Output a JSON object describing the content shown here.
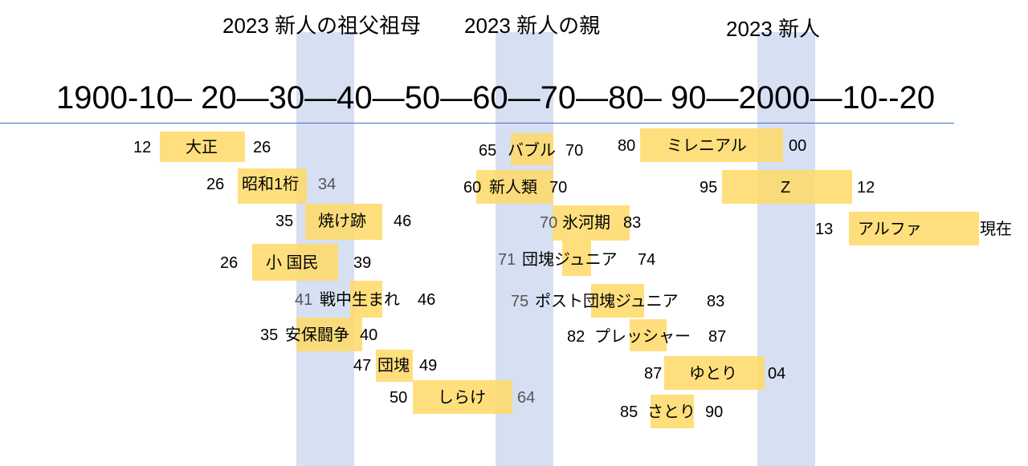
{
  "headings": {
    "grandparents": "2023 新人の祖父祖母",
    "parents": "2023 新人の親",
    "newcomers": "2023 新人"
  },
  "axis_label": "1900-10– 20—30—40—50—60—70—80– 90—2000—10--20",
  "generations": {
    "taisho": {
      "start": "12",
      "name": "大正",
      "end": "26"
    },
    "showa1": {
      "start": "26",
      "name": "昭和1桁",
      "end": "34"
    },
    "yakeato": {
      "start": "35",
      "name": "焼け跡",
      "end": "46"
    },
    "shokokumin": {
      "start": "26",
      "name": "小 国民",
      "end": "39"
    },
    "senchu": {
      "start": "41",
      "name": "戦中生まれ",
      "end": "46"
    },
    "anpo": {
      "start": "35",
      "name": "安保闘争",
      "end": "40"
    },
    "dankai": {
      "start": "47",
      "name": "団塊",
      "end": "49"
    },
    "shirake": {
      "start": "50",
      "name": "しらけ",
      "end": "64"
    },
    "bubble": {
      "start": "65",
      "name": "バブル",
      "end": "70"
    },
    "shinjinrui": {
      "start": "60",
      "name": "新人類",
      "end": "70"
    },
    "hyogaki": {
      "start": "70",
      "name": "氷河期",
      "end": "83"
    },
    "dankai_jr": {
      "start": "71",
      "name": "団塊ジュニア",
      "end": "74"
    },
    "post_dankai_jr": {
      "start": "75",
      "name": "ポスト団塊ジュニア",
      "end": "83"
    },
    "pressure": {
      "start": "82",
      "name": "プレッシャー",
      "end": "87"
    },
    "yutori": {
      "start": "87",
      "name": "ゆとり",
      "end": "04"
    },
    "satori": {
      "start": "85",
      "name": "さとり",
      "end": "90"
    },
    "millennial": {
      "start": "80",
      "name": "ミレニアル",
      "end": "00"
    },
    "gen_z": {
      "start": "95",
      "name": "Z",
      "end": "12"
    },
    "alpha": {
      "start": "13",
      "name": "アルファ",
      "end": "現在"
    }
  }
}
